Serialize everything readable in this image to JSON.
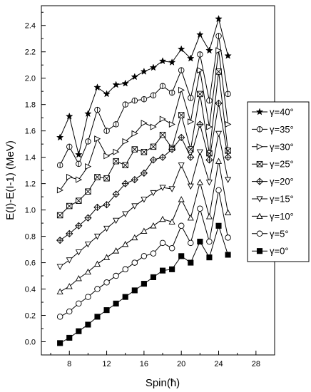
{
  "chart_data": {
    "type": "line",
    "xlabel": "Spin(ħ)",
    "ylabel": "E(I)-E(I-1) (MeV)",
    "xlim": [
      5,
      30
    ],
    "ylim": [
      -0.1,
      2.55
    ],
    "xticks": [
      "8",
      "12",
      "16",
      "20",
      "24",
      "28"
    ],
    "xtick_values": [
      8,
      12,
      16,
      20,
      24,
      28
    ],
    "yticks": [
      "0.0",
      "0.2",
      "0.4",
      "0.6",
      "0.8",
      "1.0",
      "1.2",
      "1.4",
      "1.6",
      "1.8",
      "2.0",
      "2.2",
      "2.4"
    ],
    "ytick_values": [
      0.0,
      0.2,
      0.4,
      0.6,
      0.8,
      1.0,
      1.2,
      1.4,
      1.6,
      1.8,
      2.0,
      2.2,
      2.4
    ],
    "legend_position": "right",
    "x": [
      7,
      8,
      9,
      10,
      11,
      12,
      13,
      14,
      15,
      16,
      17,
      18,
      19,
      20,
      21,
      22,
      23,
      24,
      25
    ],
    "series": [
      {
        "name": "γ=40°",
        "marker": "star",
        "values": [
          1.55,
          1.71,
          1.42,
          1.73,
          1.93,
          1.88,
          1.95,
          1.96,
          2.01,
          2.05,
          2.08,
          2.13,
          2.12,
          2.22,
          2.15,
          2.33,
          2.21,
          2.45,
          2.17
        ]
      },
      {
        "name": "γ=35°",
        "marker": "circle-vbar",
        "values": [
          1.34,
          1.48,
          1.35,
          1.52,
          1.76,
          1.6,
          1.65,
          1.8,
          1.83,
          1.84,
          1.87,
          1.94,
          1.89,
          2.06,
          1.85,
          2.18,
          1.83,
          2.32,
          1.88
        ]
      },
      {
        "name": "γ=30°",
        "marker": "triangle-right",
        "values": [
          1.15,
          1.25,
          1.23,
          1.33,
          1.54,
          1.41,
          1.44,
          1.52,
          1.58,
          1.66,
          1.63,
          1.69,
          1.65,
          1.91,
          1.67,
          2.06,
          1.63,
          2.21,
          1.65
        ]
      },
      {
        "name": "γ=25°",
        "marker": "square-x",
        "values": [
          0.96,
          1.03,
          1.07,
          1.14,
          1.25,
          1.24,
          1.37,
          1.34,
          1.46,
          1.44,
          1.48,
          1.57,
          1.47,
          1.72,
          1.46,
          1.88,
          1.43,
          2.05,
          1.45
        ]
      },
      {
        "name": "γ=20°",
        "marker": "diamond-plus",
        "values": [
          0.77,
          0.82,
          0.88,
          0.94,
          1.02,
          1.04,
          1.12,
          1.2,
          1.23,
          1.28,
          1.38,
          1.4,
          1.46,
          1.55,
          1.4,
          1.65,
          1.38,
          1.81,
          1.4
        ]
      },
      {
        "name": "γ=15°",
        "marker": "triangle-down",
        "values": [
          0.57,
          0.62,
          0.68,
          0.74,
          0.8,
          0.86,
          0.92,
          0.97,
          1.03,
          1.08,
          1.13,
          1.17,
          1.16,
          1.34,
          1.18,
          1.44,
          1.21,
          1.58,
          1.23
        ]
      },
      {
        "name": "γ=10°",
        "marker": "triangle-up",
        "values": [
          0.38,
          0.42,
          0.48,
          0.53,
          0.59,
          0.64,
          0.69,
          0.74,
          0.79,
          0.84,
          0.88,
          0.93,
          0.91,
          1.08,
          0.94,
          1.21,
          0.95,
          1.37,
          0.98
        ]
      },
      {
        "name": "γ=5°",
        "marker": "circle",
        "values": [
          0.19,
          0.23,
          0.29,
          0.34,
          0.4,
          0.45,
          0.5,
          0.55,
          0.6,
          0.65,
          0.67,
          0.75,
          0.71,
          0.88,
          0.75,
          1.01,
          0.76,
          1.15,
          0.79
        ]
      },
      {
        "name": "γ=0°",
        "marker": "filled-square",
        "values": [
          -0.01,
          0.03,
          0.08,
          0.13,
          0.19,
          0.24,
          0.29,
          0.34,
          0.39,
          0.44,
          0.49,
          0.54,
          0.55,
          0.65,
          0.6,
          0.76,
          0.64,
          0.88,
          0.66
        ]
      }
    ]
  }
}
